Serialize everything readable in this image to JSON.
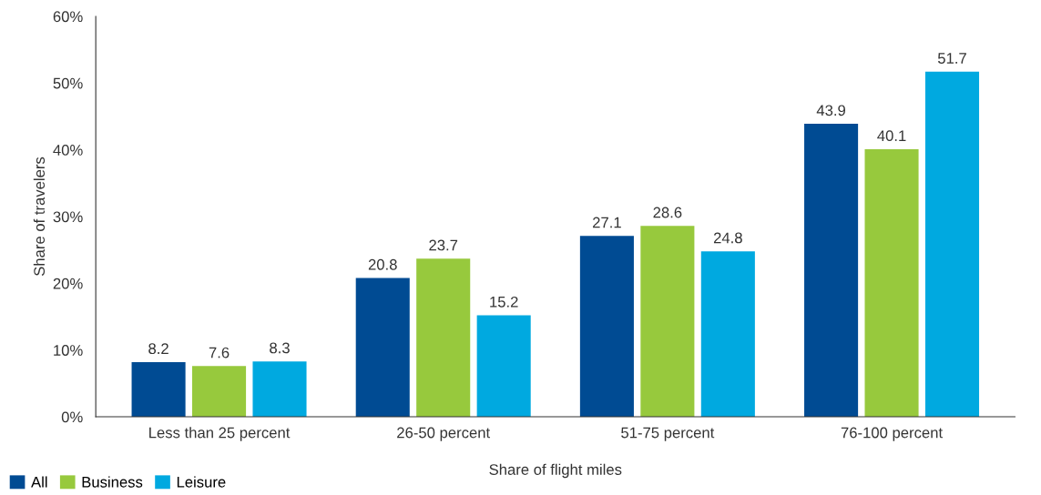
{
  "chart_data": {
    "type": "bar",
    "xlabel": "Share of flight miles",
    "ylabel": "Share of travelers",
    "categories": [
      "Less than 25 percent",
      "26-50 percent",
      "51-75 percent",
      "76-100 percent"
    ],
    "series": [
      {
        "name": "All",
        "color": "#004b93",
        "values": [
          8.2,
          20.8,
          27.1,
          43.9
        ]
      },
      {
        "name": "Business",
        "color": "#97c93d",
        "values": [
          7.6,
          23.7,
          28.6,
          40.1
        ]
      },
      {
        "name": "Leisure",
        "color": "#00a9e0",
        "values": [
          8.3,
          15.2,
          24.8,
          51.7
        ]
      }
    ],
    "ylim": [
      0,
      60
    ],
    "yticks": [
      {
        "value": 0,
        "label": "0%"
      },
      {
        "value": 10,
        "label": "10%"
      },
      {
        "value": 20,
        "label": "20%"
      },
      {
        "value": 30,
        "label": "30%"
      },
      {
        "value": 40,
        "label": "40%"
      },
      {
        "value": 50,
        "label": "50%"
      },
      {
        "value": 60,
        "label": "60%"
      }
    ],
    "data_labels": true,
    "grid": false,
    "legend": "bottom left"
  }
}
